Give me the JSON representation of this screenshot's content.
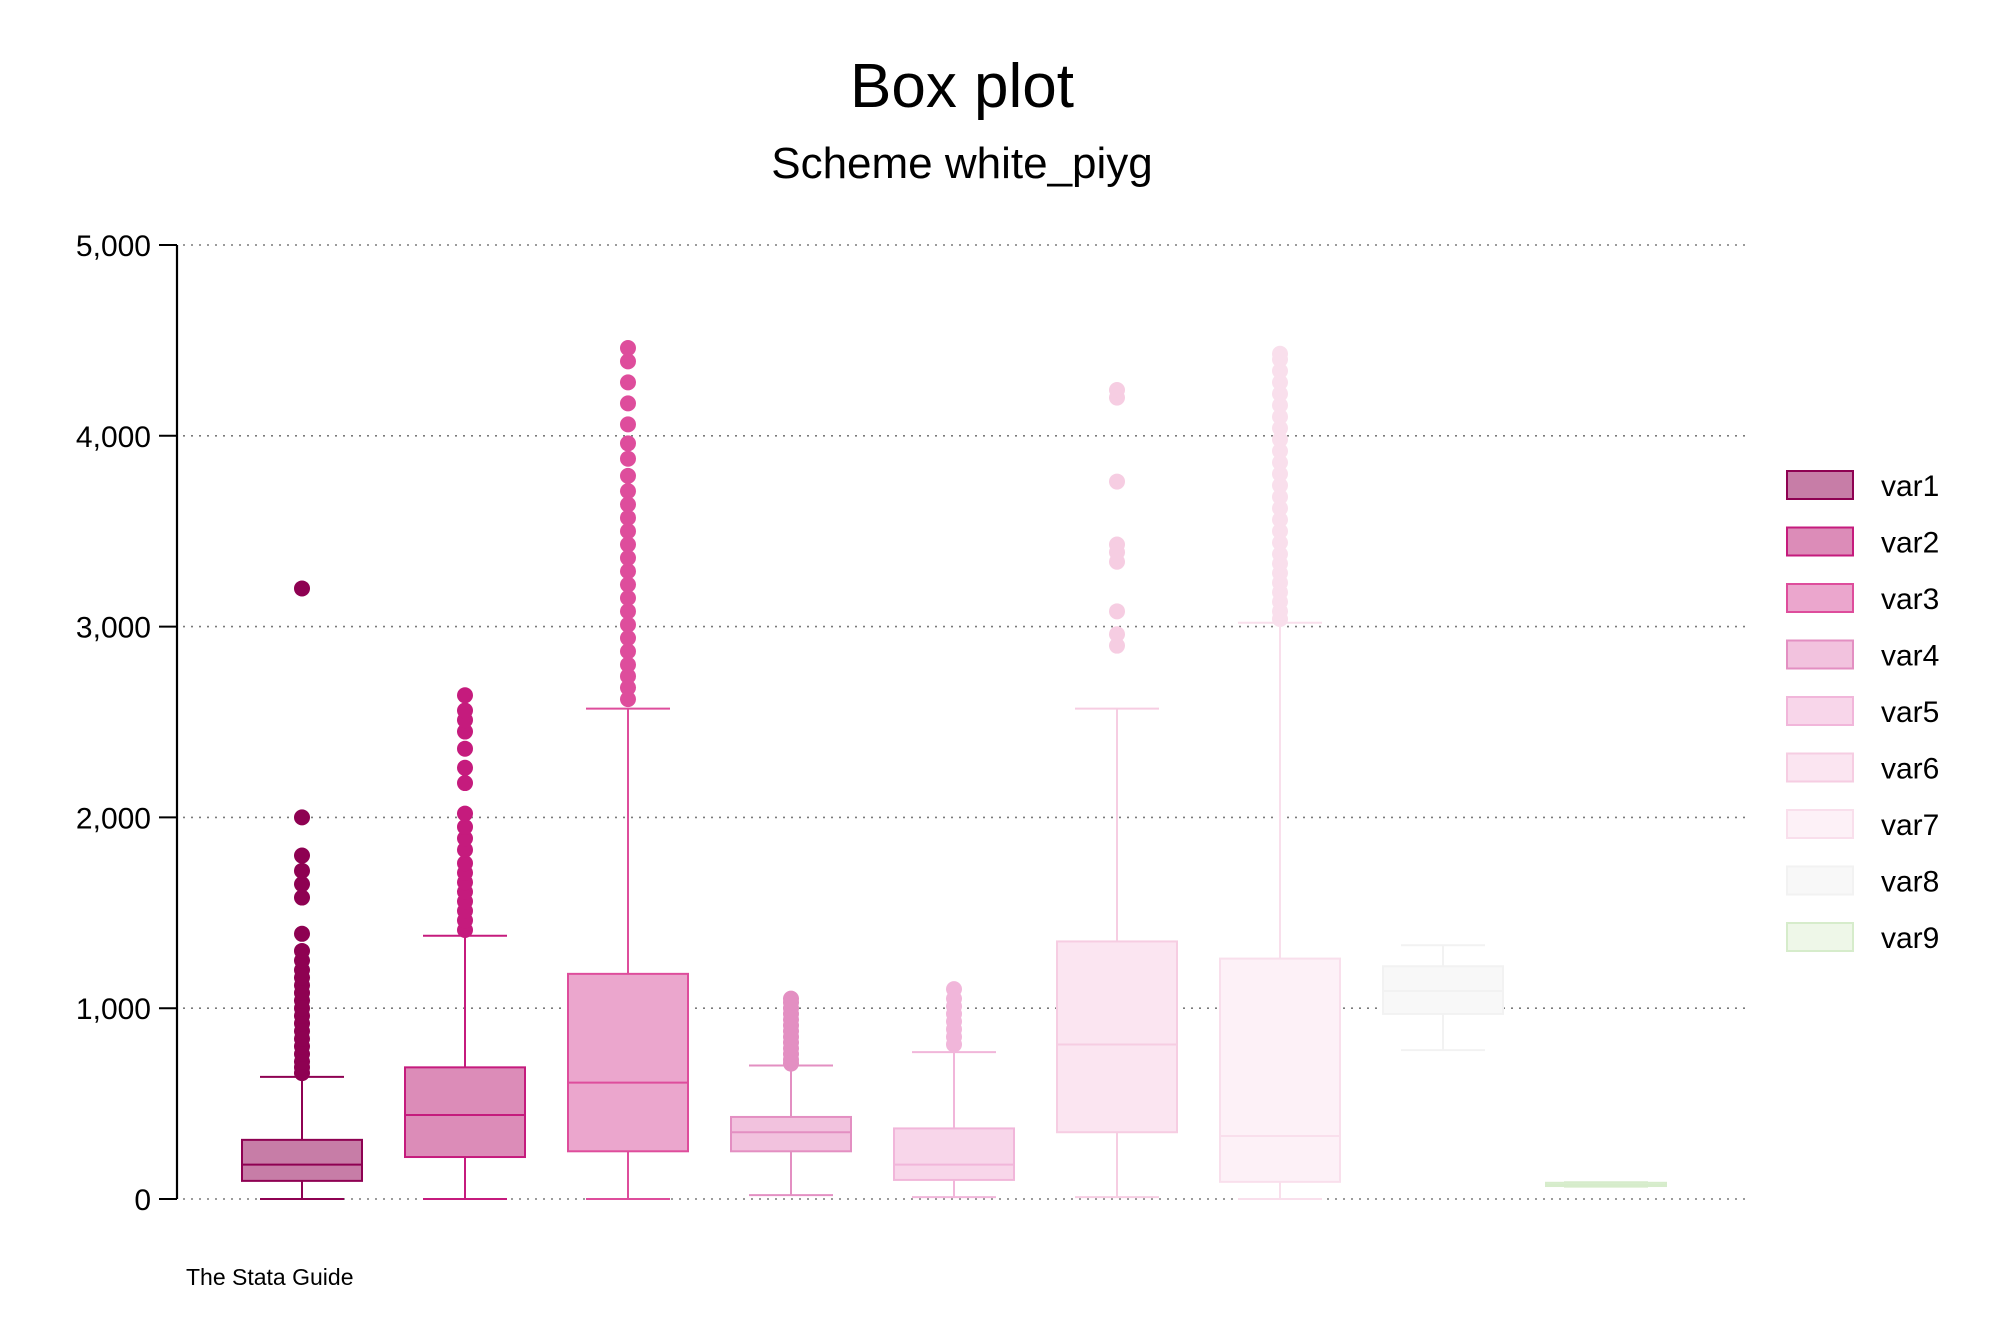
{
  "chart_data": {
    "type": "boxplot",
    "title": "Box plot",
    "subtitle": "Scheme white_piyg",
    "note": "The Stata Guide",
    "xlabel": "",
    "ylabel": "",
    "ylim": [
      0,
      5000
    ],
    "yticks": [
      0,
      1000,
      2000,
      3000,
      4000,
      5000
    ],
    "ytick_labels": [
      "0",
      "1,000",
      "2,000",
      "3,000",
      "4,000",
      "5,000"
    ],
    "grid": true,
    "legend_position": "right",
    "series": [
      {
        "name": "var1",
        "color": "#8e0152",
        "fill": "#c77da7",
        "fillOpacity": 1.0,
        "whisker_low": 0,
        "q1": 95,
        "median": 180,
        "q3": 310,
        "whisker_high": 640,
        "outliers": [
          660,
          690,
          720,
          760,
          800,
          840,
          880,
          920,
          960,
          1000,
          1040,
          1080,
          1120,
          1160,
          1200,
          1250,
          1300,
          1390,
          1580,
          1650,
          1720,
          1800,
          2000,
          3200
        ]
      },
      {
        "name": "var2",
        "color": "#c51b7d",
        "fill": "#dc8cb8",
        "fillOpacity": 1.0,
        "whisker_low": 0,
        "q1": 220,
        "median": 440,
        "q3": 690,
        "whisker_high": 1380,
        "outliers": [
          1410,
          1460,
          1510,
          1560,
          1610,
          1660,
          1710,
          1760,
          1830,
          1890,
          1950,
          2020,
          2180,
          2260,
          2360,
          2450,
          2510,
          2560,
          2640
        ]
      },
      {
        "name": "var3",
        "color": "#de4d9c",
        "fill": "#eba6cd",
        "fillOpacity": 1.0,
        "whisker_low": 0,
        "q1": 250,
        "median": 610,
        "q3": 1180,
        "whisker_high": 2570,
        "outliers": [
          2620,
          2680,
          2740,
          2800,
          2870,
          2940,
          3010,
          3080,
          3150,
          3220,
          3290,
          3360,
          3430,
          3500,
          3570,
          3640,
          3710,
          3790,
          3880,
          3960,
          4060,
          4170,
          4280,
          4390,
          4460
        ]
      },
      {
        "name": "var4",
        "color": "#e38fc2",
        "fill": "#f2c2de",
        "fillOpacity": 1.0,
        "whisker_low": 20,
        "q1": 250,
        "median": 350,
        "q3": 430,
        "whisker_high": 700,
        "outliers": [
          710,
          730,
          760,
          790,
          820,
          850,
          880,
          910,
          940,
          970,
          1000,
          1030,
          1050
        ]
      },
      {
        "name": "var5",
        "color": "#f1b6da",
        "fill": "#f8d6ea",
        "fillOpacity": 1.0,
        "whisker_low": 10,
        "q1": 100,
        "median": 180,
        "q3": 370,
        "whisker_high": 770,
        "outliers": [
          810,
          850,
          890,
          930,
          970,
          1010,
          1050,
          1100
        ]
      },
      {
        "name": "var6",
        "color": "#f6cde2",
        "fill": "#fbe5f1",
        "fillOpacity": 1.0,
        "whisker_low": 10,
        "q1": 350,
        "median": 810,
        "q3": 1350,
        "whisker_high": 2570,
        "outliers": [
          2900,
          2960,
          3080,
          3340,
          3390,
          3430,
          3760,
          4200,
          4240
        ]
      },
      {
        "name": "var7",
        "color": "#f9dfec",
        "fill": "#fdf1f7",
        "fillOpacity": 1.0,
        "whisker_low": 0,
        "q1": 90,
        "median": 330,
        "q3": 1260,
        "whisker_high": 3020,
        "outliers": [
          3040,
          3080,
          3130,
          3180,
          3230,
          3280,
          3330,
          3380,
          3440,
          3500,
          3560,
          3620,
          3680,
          3740,
          3800,
          3860,
          3920,
          3980,
          4040,
          4100,
          4160,
          4220,
          4280,
          4340,
          4400,
          4430
        ]
      },
      {
        "name": "var8",
        "color": "#f2f2f2",
        "fill": "#f8f8f8",
        "fillOpacity": 1.0,
        "whisker_low": 780,
        "q1": 970,
        "median": 1090,
        "q3": 1220,
        "whisker_high": 1330,
        "outliers": []
      },
      {
        "name": "var9",
        "color": "#d6eccb",
        "fill": "#eef7e8",
        "fillOpacity": 1.0,
        "whisker_low": 65,
        "q1": 68,
        "median": 75,
        "q3": 85,
        "whisker_high": 88,
        "outliers": []
      }
    ]
  }
}
